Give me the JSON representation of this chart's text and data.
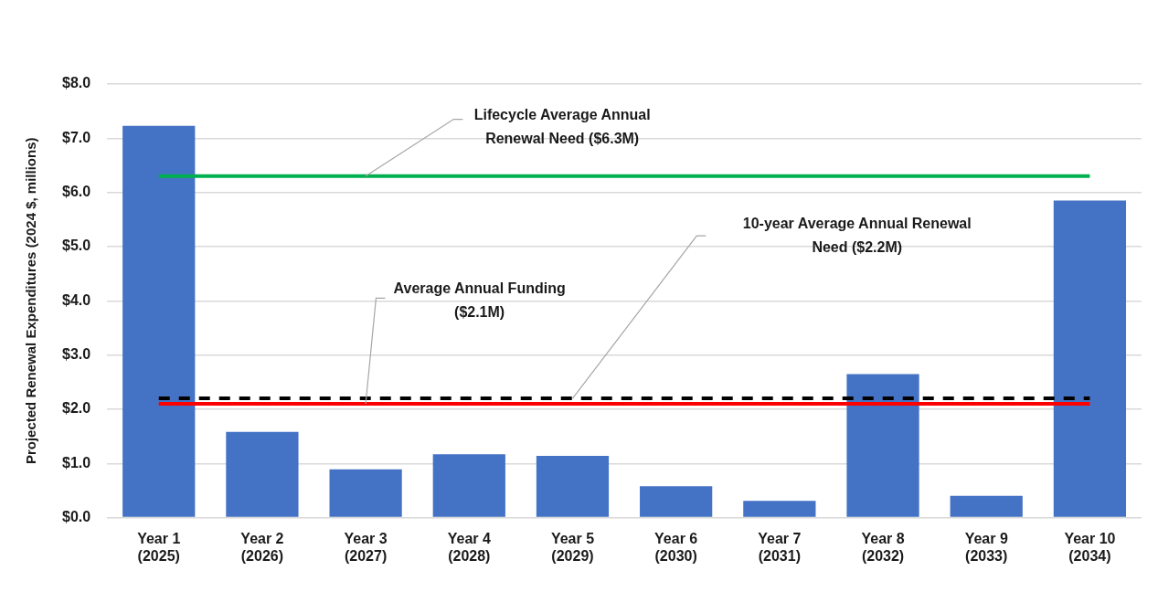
{
  "chart_data": {
    "type": "bar",
    "ylabel": "Projected Renewal Expenditures (2024 $, millions)",
    "categories": [
      "Year 1\n(2025)",
      "Year 2\n(2026)",
      "Year 3\n(2027)",
      "Year 4\n(2028)",
      "Year 5\n(2029)",
      "Year 6\n(2030)",
      "Year 7\n(2031)",
      "Year 8\n(2032)",
      "Year 9\n(2033)",
      "Year 10\n(2034)"
    ],
    "values": [
      7.23,
      1.58,
      0.89,
      1.17,
      1.14,
      0.58,
      0.31,
      2.65,
      0.4,
      5.85
    ],
    "color": "#4472c4",
    "ylim": [
      0,
      8
    ],
    "yticks": [
      {
        "value": 0,
        "label": "$0.0"
      },
      {
        "value": 1,
        "label": "$1.0"
      },
      {
        "value": 2,
        "label": "$2.0"
      },
      {
        "value": 3,
        "label": "$3.0"
      },
      {
        "value": 4,
        "label": "$4.0"
      },
      {
        "value": 5,
        "label": "$5.0"
      },
      {
        "value": 6,
        "label": "$6.0"
      },
      {
        "value": 7,
        "label": "$7.0"
      },
      {
        "value": 8,
        "label": "$8.0"
      }
    ],
    "grid": "y",
    "legend": false,
    "ref_lines": [
      {
        "axis": "y",
        "value": 6.3,
        "label": "Lifecycle Average Annual\nRenewal Need ($6.3M)",
        "color": "#00b050",
        "line_style": "solid"
      },
      {
        "axis": "y",
        "value": 2.1,
        "label": "Average Annual Funding\n($2.1M)",
        "color": "#ff0000",
        "line_style": "solid"
      },
      {
        "axis": "y",
        "value": 2.2,
        "label": "10-year Average Annual Renewal\nNeed ($2.2M)",
        "color": "#000000",
        "line_style": "dashed"
      }
    ]
  }
}
